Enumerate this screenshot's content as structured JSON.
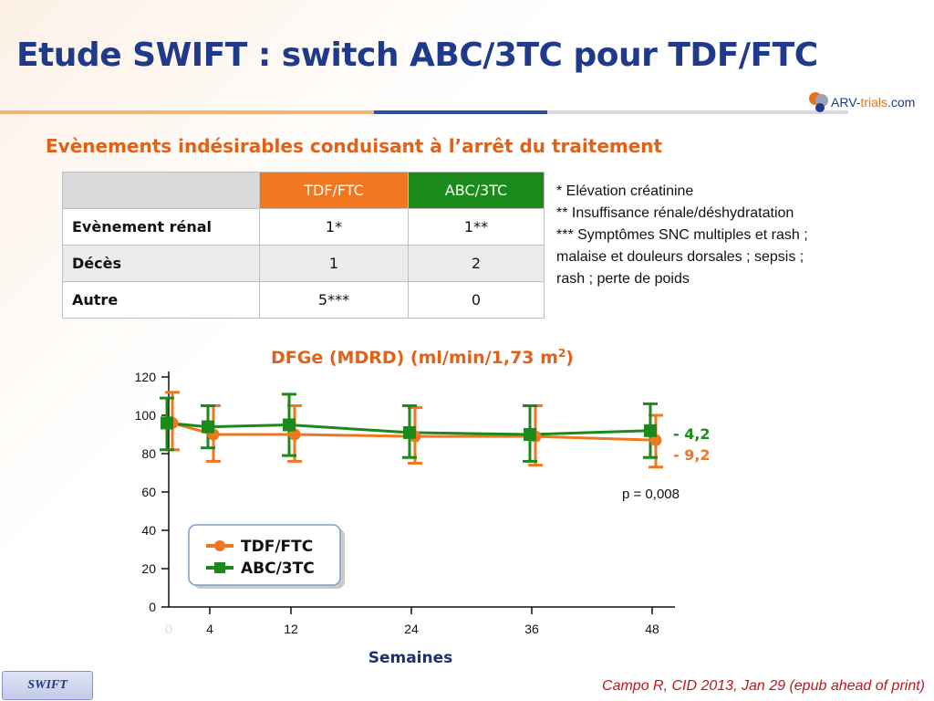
{
  "title": "Etude SWIFT : switch ABC/3TC pour TDF/FTC",
  "logo": {
    "text_main": "ARV-",
    "text_accent": "trials",
    "text_suffix": ".com"
  },
  "subtitle": "Evènements indésirables conduisant à l’arrêt du traitement",
  "table": {
    "headers": [
      "",
      "TDF/FTC",
      "ABC/3TC"
    ],
    "rows": [
      {
        "label": "Evènement rénal",
        "tdf": "1*",
        "abc": "1**"
      },
      {
        "label": "Décès",
        "tdf": "1",
        "abc": "2"
      },
      {
        "label": "Autre",
        "tdf": "5***",
        "abc": "0"
      }
    ]
  },
  "notes": [
    "* Elévation créatinine",
    "** Insuffisance rénale/déshydratation",
    "*** Symptômes SNC multiples et rash ;",
    "malaise et douleurs dorsales ; sepsis ;",
    "rash ; perte de poids"
  ],
  "chart_data": {
    "type": "line",
    "title": "DFGe (MDRD) (ml/min/1,73 m²)",
    "title_main": "DFGe (MDRD) (ml/min/1,73 m",
    "title_sup": "2",
    "title_end": ")",
    "xlabel": "Semaines",
    "ylabel": "",
    "x_ticks": [
      "0",
      "4",
      "12",
      "24",
      "36",
      "48"
    ],
    "x_values": [
      0,
      4,
      12,
      24,
      36,
      48
    ],
    "y_ticks": [
      0,
      20,
      40,
      60,
      80,
      100,
      120
    ],
    "ylim": [
      0,
      120
    ],
    "xlim": [
      0,
      50
    ],
    "grid": false,
    "legend_position": "bottom-left",
    "series": [
      {
        "name": "TDF/FTC",
        "color": "#f0761f",
        "marker": "circle",
        "x": [
          0,
          4,
          12,
          24,
          36,
          48
        ],
        "y": [
          96,
          90,
          90,
          89,
          89,
          87
        ],
        "err_low": [
          82,
          76,
          76,
          75,
          74,
          73
        ],
        "err_high": [
          112,
          105,
          105,
          104,
          105,
          100
        ],
        "end_label": "- 9,2"
      },
      {
        "name": "ABC/3TC",
        "color": "#1a8a1a",
        "marker": "square",
        "x": [
          0,
          4,
          12,
          24,
          36,
          48
        ],
        "y": [
          96,
          94,
          95,
          91,
          90,
          92
        ],
        "err_low": [
          82,
          83,
          79,
          78,
          76,
          78
        ],
        "err_high": [
          109,
          105,
          111,
          105,
          105,
          106
        ],
        "end_label": "- 4,2"
      }
    ],
    "annotation": "p = 0,008"
  },
  "footer": {
    "tag": "SWIFT",
    "citation": "Campo R, CID 2013, Jan 29 (epub ahead of print)"
  }
}
